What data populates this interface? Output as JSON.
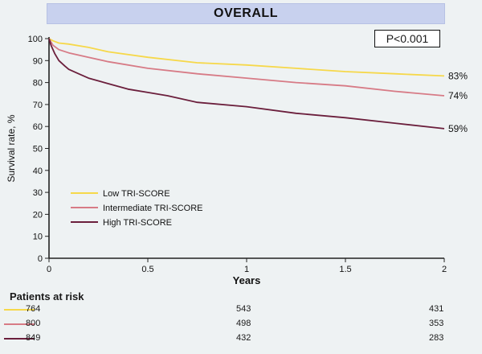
{
  "title": "OVERALL",
  "p_value": "P<0.001",
  "risk_table": {
    "title": "Patients at risk",
    "times": [
      0,
      1,
      2
    ],
    "rows": [
      {
        "color": "#f6d84a",
        "values": [
          "764",
          "543",
          "431"
        ]
      },
      {
        "color": "#d77b86",
        "values": [
          "800",
          "498",
          "353"
        ]
      },
      {
        "color": "#6b1f3c",
        "values": [
          "849",
          "432",
          "283"
        ]
      }
    ]
  },
  "chart_data": {
    "type": "line",
    "title": "OVERALL",
    "xlabel": "Years",
    "ylabel": "Survival rate, %",
    "xlim": [
      0,
      2
    ],
    "ylim": [
      0,
      100
    ],
    "xticks": [
      0,
      0.5,
      1,
      1.5,
      2
    ],
    "xtick_labels": [
      "0",
      "0.5",
      "1",
      "1.5",
      "2"
    ],
    "yticks": [
      0,
      10,
      20,
      30,
      40,
      50,
      60,
      70,
      80,
      90,
      100
    ],
    "legend_position": "lower-left",
    "series": [
      {
        "name": "Low TRI-SCORE",
        "color": "#f6d84a",
        "end_label": "83%",
        "x": [
          0,
          0.02,
          0.05,
          0.1,
          0.2,
          0.3,
          0.5,
          0.75,
          1,
          1.25,
          1.5,
          1.75,
          2
        ],
        "y": [
          100,
          99,
          98,
          97.5,
          96,
          94,
          91.5,
          89,
          88,
          86.5,
          85,
          84,
          83
        ]
      },
      {
        "name": "Intermediate TRI-SCORE",
        "color": "#d77b86",
        "end_label": "74%",
        "x": [
          0,
          0.02,
          0.05,
          0.1,
          0.2,
          0.3,
          0.5,
          0.75,
          1,
          1.25,
          1.5,
          1.75,
          2
        ],
        "y": [
          100,
          97,
          95,
          93.5,
          91.5,
          89.5,
          86.5,
          84,
          82,
          80,
          78.5,
          76,
          74
        ]
      },
      {
        "name": "High TRI-SCORE",
        "color": "#6b1f3c",
        "end_label": "59%",
        "x": [
          0,
          0.01,
          0.03,
          0.05,
          0.08,
          0.1,
          0.15,
          0.2,
          0.3,
          0.4,
          0.5,
          0.6,
          0.75,
          1,
          1.25,
          1.5,
          1.75,
          2
        ],
        "y": [
          100,
          97,
          93,
          90,
          87.5,
          86,
          84,
          82,
          79.5,
          77,
          75.5,
          74,
          71,
          69,
          66,
          64,
          61.5,
          59
        ]
      }
    ]
  }
}
